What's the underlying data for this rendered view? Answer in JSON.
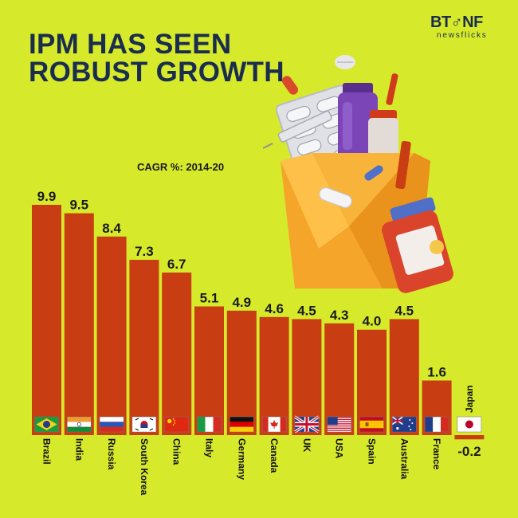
{
  "header": {
    "title_line1": "IPM HAS SEEN",
    "title_line2": "ROBUST GROWTH",
    "logo_main": "BT♂NF",
    "logo_sub": "newsflicks"
  },
  "colors": {
    "background": "#d6e92a",
    "bar": "#c93d12",
    "title": "#1a2d4f"
  },
  "chart_data": {
    "type": "bar",
    "title": "",
    "subtitle": "CAGR %: 2014-20",
    "xlabel": "",
    "ylabel": "",
    "ylim": [
      -0.2,
      9.9
    ],
    "grid": false,
    "categories": [
      "Brazil",
      "India",
      "Russia",
      "South Korea",
      "China",
      "Italy",
      "Germany",
      "Canada",
      "UK",
      "USA",
      "Spain",
      "Australia",
      "France",
      "Japan"
    ],
    "values": [
      9.9,
      9.5,
      8.4,
      7.3,
      6.7,
      5.1,
      4.9,
      4.6,
      4.5,
      4.3,
      4.0,
      4.5,
      1.6,
      -0.2
    ],
    "labels": [
      "9.9",
      "9.5",
      "8.4",
      "7.3",
      "6.7",
      "5.1",
      "4.9",
      "4.6",
      "4.5",
      "4.3",
      "4.0",
      "4.5",
      "1.6",
      "-0.2"
    ],
    "flag_icons": [
      "brazil-flag-icon",
      "india-flag-icon",
      "russia-flag-icon",
      "south-korea-flag-icon",
      "china-flag-icon",
      "italy-flag-icon",
      "germany-flag-icon",
      "canada-flag-icon",
      "uk-flag-icon",
      "usa-flag-icon",
      "spain-flag-icon",
      "australia-flag-icon",
      "france-flag-icon",
      "japan-flag-icon"
    ]
  }
}
